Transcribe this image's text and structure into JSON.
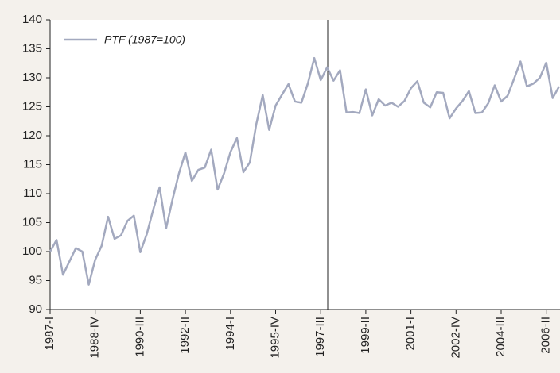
{
  "chart_data": {
    "type": "line",
    "legend_text": "PTF (1987=100)",
    "categories": [
      "1987-I",
      null,
      null,
      null,
      null,
      null,
      null,
      "1988-IV",
      null,
      null,
      null,
      null,
      null,
      null,
      "1990-III",
      null,
      null,
      null,
      null,
      null,
      null,
      "1992-II",
      null,
      null,
      null,
      null,
      null,
      null,
      "1994-I",
      null,
      null,
      null,
      null,
      null,
      null,
      "1995-IV",
      null,
      null,
      null,
      null,
      null,
      null,
      "1997-III",
      null,
      null,
      null,
      null,
      null,
      null,
      "1999-II",
      null,
      null,
      null,
      null,
      null,
      null,
      "2001-I",
      null,
      null,
      null,
      null,
      null,
      null,
      "2002-IV",
      null,
      null,
      null,
      null,
      null,
      null,
      "2004-III",
      null,
      null,
      null,
      null,
      null,
      null,
      "2006-II",
      null,
      null
    ],
    "series": [
      {
        "name": "PTF (1987=100)",
        "color": "#a3a9bf",
        "values": [
          100,
          102,
          96,
          98.3,
          100.6,
          100,
          94.3,
          98.6,
          101,
          106,
          102.2,
          102.8,
          105.3,
          106.2,
          99.9,
          103,
          107.2,
          111.1,
          104,
          109,
          113.5,
          117.1,
          112.2,
          114.1,
          114.5,
          117.6,
          110.7,
          113.5,
          117.2,
          119.6,
          113.7,
          115.4,
          122,
          127,
          121,
          125.2,
          127.1,
          128.9,
          125.9,
          125.7,
          129,
          133.4,
          129.6,
          131.8,
          129.5,
          131.3,
          124,
          124.1,
          123.9,
          128,
          123.5,
          126.3,
          125.2,
          125.7,
          125,
          126,
          128.2,
          129.4,
          125.7,
          124.9,
          127.5,
          127.4,
          123,
          124.7,
          126,
          127.7,
          123.9,
          124,
          125.6,
          128.7,
          125.9,
          126.9,
          129.8,
          132.8,
          128.5,
          129,
          130,
          132.6,
          126.5,
          128.5
        ]
      }
    ],
    "ylim": [
      90,
      140
    ],
    "yticks": [
      90,
      95,
      100,
      105,
      110,
      115,
      120,
      125,
      130,
      135,
      140
    ],
    "legend": "upper left"
  }
}
